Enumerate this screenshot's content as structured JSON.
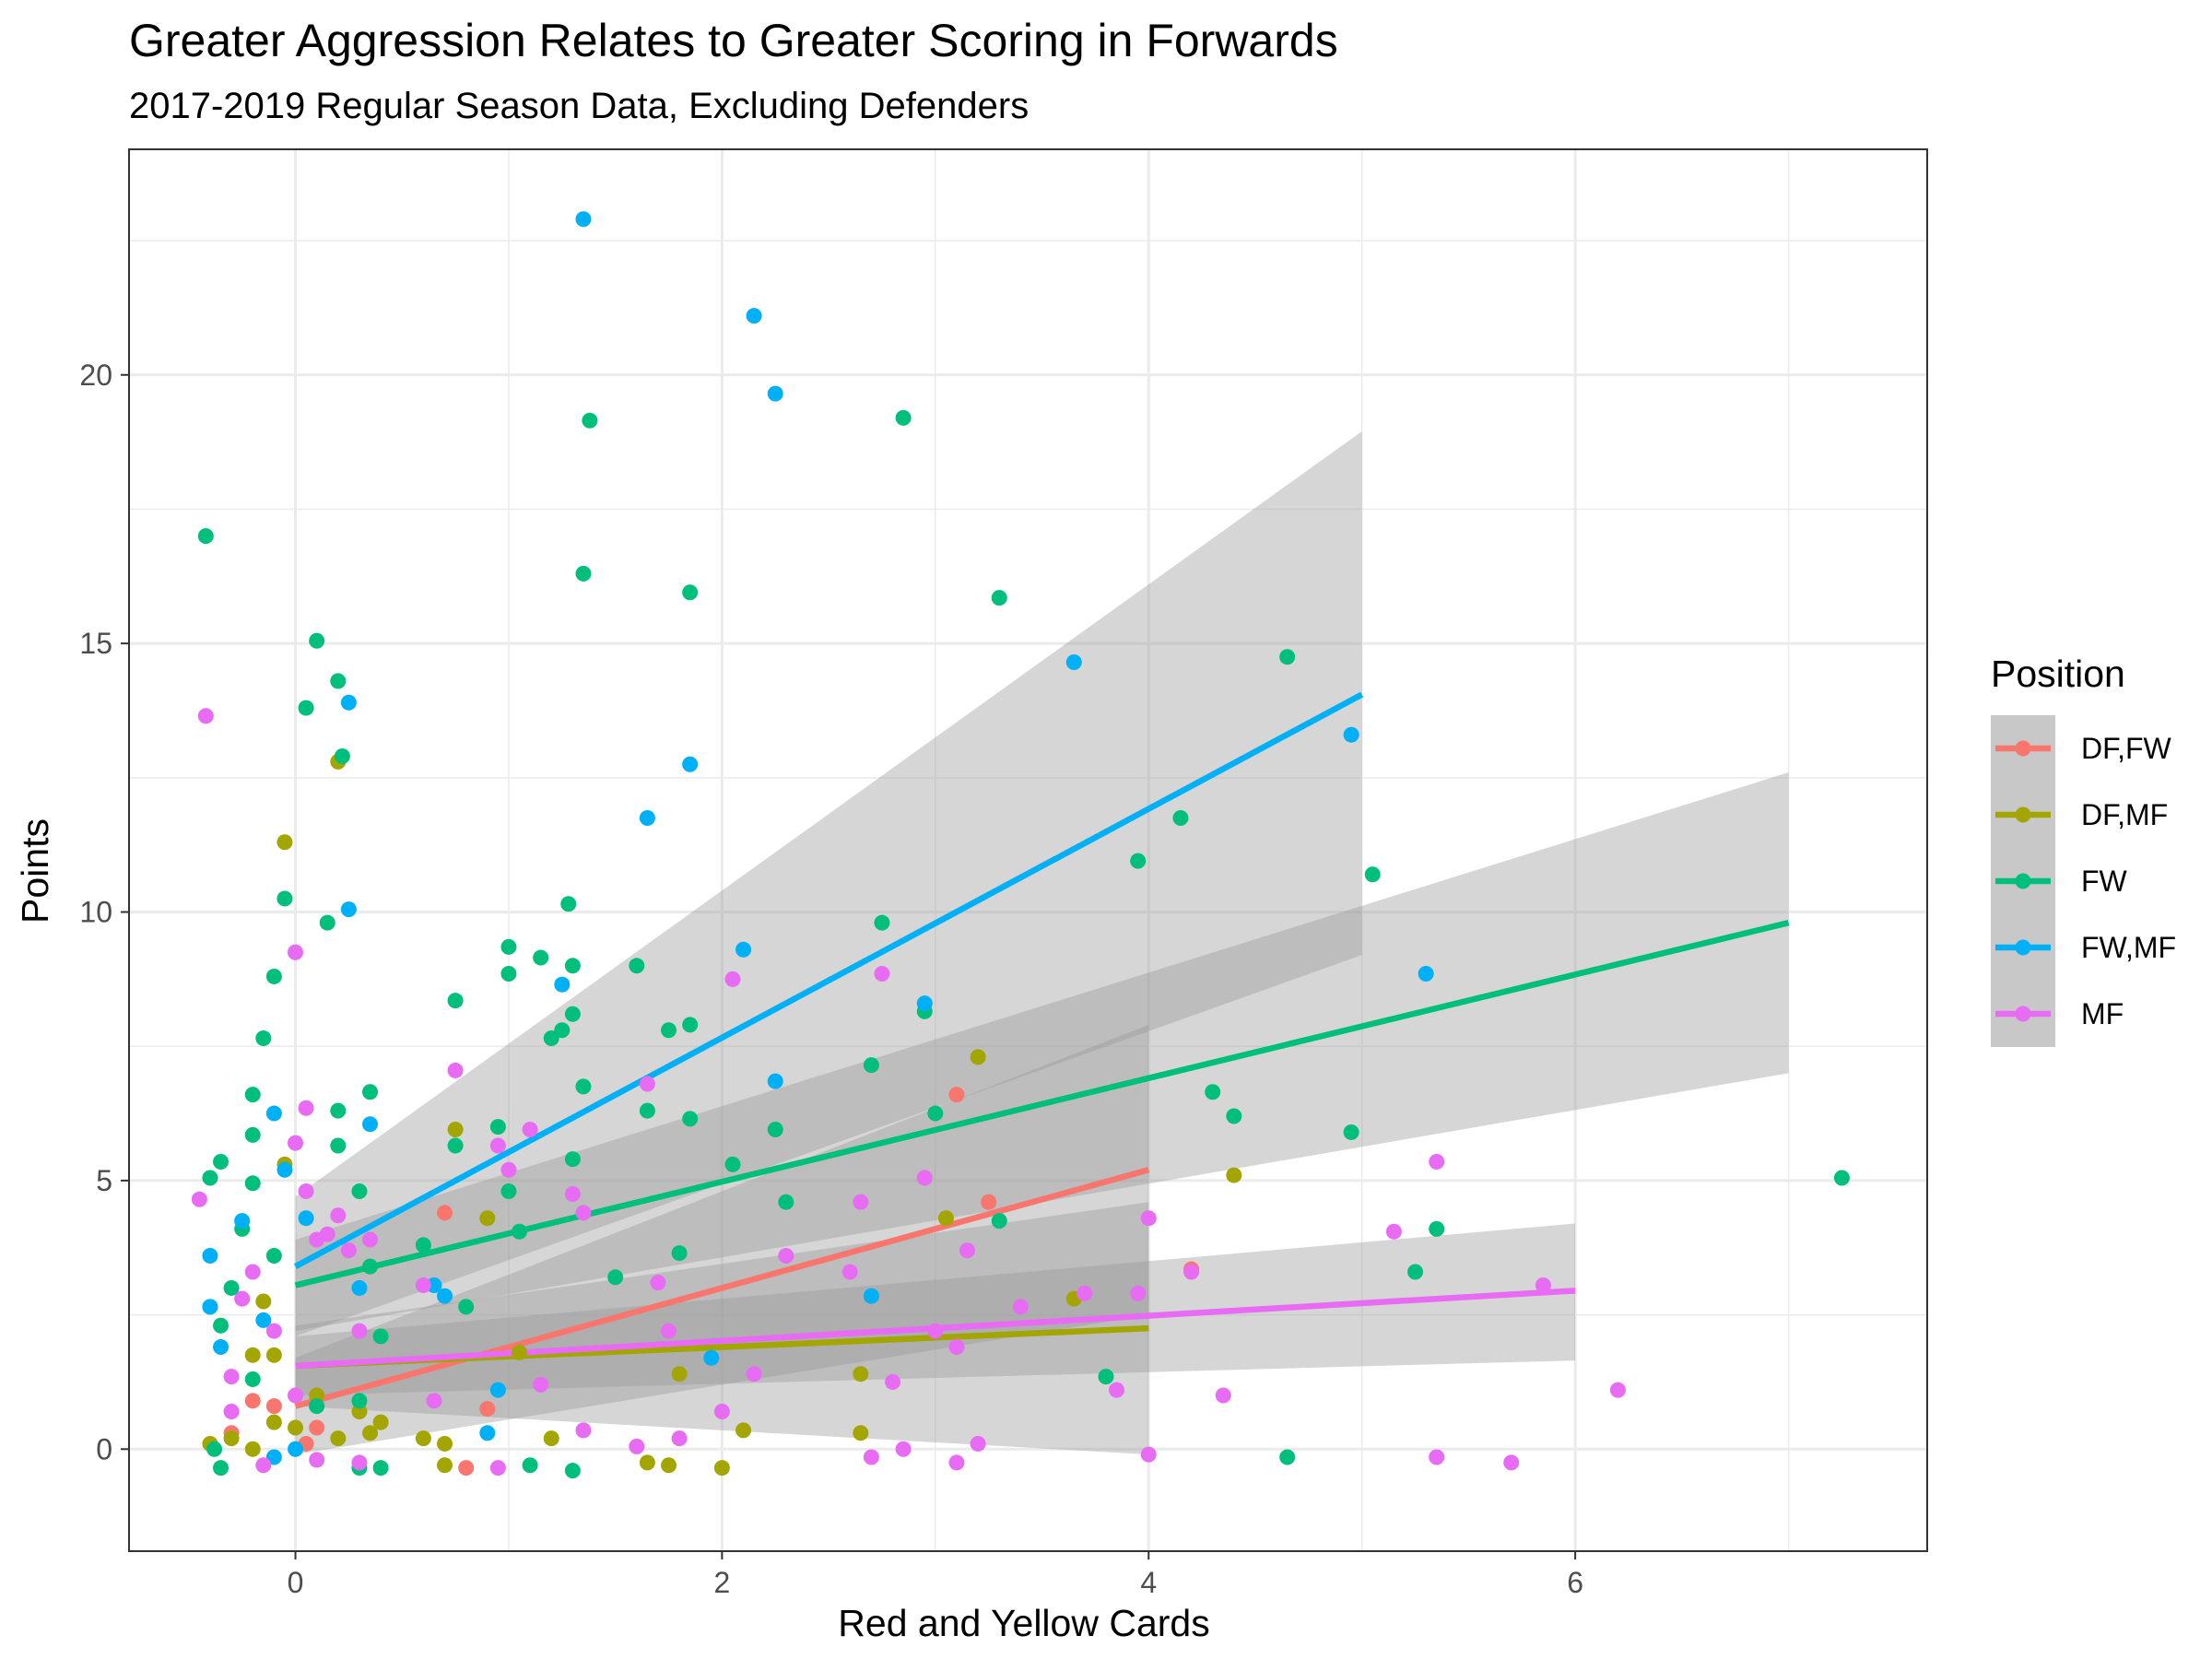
{
  "chart_data": {
    "type": "scatter",
    "title": "Greater Aggression Relates to Greater Scoring in Forwards",
    "subtitle": "2017-2019 Regular Season Data, Excluding Defenders",
    "xlabel": "Red and Yellow Cards",
    "ylabel": "Points",
    "xlim": [
      -0.78,
      7.65
    ],
    "ylim": [
      -1.9,
      24.2
    ],
    "x_ticks": [
      0,
      2,
      4,
      6
    ],
    "y_ticks": [
      0,
      5,
      10,
      15,
      20
    ],
    "x_tick_labels": [
      "0",
      "2",
      "4",
      "6"
    ],
    "y_tick_labels": [
      "0",
      "5",
      "10",
      "15",
      "20"
    ],
    "grid": true,
    "legend": {
      "title": "Position",
      "placement": "right"
    },
    "series": [
      {
        "name": "DF,FW",
        "color": "#F8766D",
        "points": [
          [
            -0.3,
            0.3
          ],
          [
            -0.2,
            0.9
          ],
          [
            -0.1,
            0.8
          ],
          [
            0.05,
            0.1
          ],
          [
            0.1,
            0.4
          ],
          [
            0.7,
            4.4
          ],
          [
            0.8,
            -0.35
          ],
          [
            0.9,
            0.75
          ],
          [
            3.1,
            6.6
          ],
          [
            3.25,
            4.6
          ],
          [
            4.2,
            3.35
          ]
        ],
        "fit": {
          "x": [
            0,
            4
          ],
          "y": [
            0.8,
            5.2
          ]
        },
        "band": {
          "x": [
            0,
            4
          ],
          "lower": [
            -0.1,
            2.5
          ],
          "upper": [
            1.7,
            7.9
          ]
        }
      },
      {
        "name": "DF,MF",
        "color": "#A3A500",
        "points": [
          [
            -0.4,
            0.1
          ],
          [
            -0.3,
            0.2
          ],
          [
            -0.2,
            1.75
          ],
          [
            -0.2,
            0.0
          ],
          [
            -0.15,
            2.75
          ],
          [
            -0.1,
            1.75
          ],
          [
            -0.1,
            0.5
          ],
          [
            -0.05,
            11.3
          ],
          [
            -0.05,
            5.3
          ],
          [
            0.0,
            0.4
          ],
          [
            0.1,
            1.0
          ],
          [
            0.2,
            12.8
          ],
          [
            0.2,
            0.2
          ],
          [
            0.3,
            0.7
          ],
          [
            0.35,
            0.3
          ],
          [
            0.4,
            0.5
          ],
          [
            0.6,
            0.2
          ],
          [
            0.7,
            -0.3
          ],
          [
            0.7,
            0.1
          ],
          [
            0.75,
            5.95
          ],
          [
            0.9,
            4.3
          ],
          [
            1.05,
            1.8
          ],
          [
            1.2,
            0.2
          ],
          [
            1.8,
            1.4
          ],
          [
            1.75,
            -0.3
          ],
          [
            1.65,
            -0.25
          ],
          [
            2.0,
            -0.35
          ],
          [
            2.1,
            0.35
          ],
          [
            2.65,
            1.4
          ],
          [
            2.65,
            0.3
          ],
          [
            3.05,
            4.3
          ],
          [
            3.2,
            7.3
          ],
          [
            3.65,
            2.8
          ],
          [
            4.4,
            5.1
          ]
        ],
        "fit": {
          "x": [
            0,
            4
          ],
          "y": [
            1.55,
            2.25
          ]
        },
        "band": {
          "x": [
            0,
            4
          ],
          "lower": [
            0.8,
            -0.1
          ],
          "upper": [
            2.3,
            4.6
          ]
        }
      },
      {
        "name": "FW",
        "color": "#00BF7D",
        "points": [
          [
            -0.42,
            17.0
          ],
          [
            -0.4,
            5.05
          ],
          [
            -0.35,
            5.35
          ],
          [
            -0.4,
            2.65
          ],
          [
            -0.35,
            2.3
          ],
          [
            -0.3,
            3.0
          ],
          [
            -0.25,
            4.1
          ],
          [
            -0.2,
            6.6
          ],
          [
            -0.2,
            5.85
          ],
          [
            -0.2,
            4.95
          ],
          [
            -0.15,
            7.65
          ],
          [
            -0.1,
            3.6
          ],
          [
            -0.1,
            8.8
          ],
          [
            -0.05,
            10.25
          ],
          [
            0.05,
            13.8
          ],
          [
            0.1,
            15.05
          ],
          [
            0.15,
            9.8
          ],
          [
            0.2,
            14.3
          ],
          [
            0.2,
            6.3
          ],
          [
            0.2,
            5.65
          ],
          [
            0.22,
            12.9
          ],
          [
            0.35,
            6.65
          ],
          [
            0.3,
            4.8
          ],
          [
            0.35,
            3.4
          ],
          [
            0.4,
            2.1
          ],
          [
            -0.38,
            0.0
          ],
          [
            -0.2,
            1.3
          ],
          [
            0.1,
            0.8
          ],
          [
            0.3,
            0.9
          ],
          [
            0.6,
            3.8
          ],
          [
            0.75,
            8.35
          ],
          [
            0.75,
            5.65
          ],
          [
            0.8,
            2.65
          ],
          [
            0.95,
            6.0
          ],
          [
            1.0,
            9.35
          ],
          [
            1.0,
            8.85
          ],
          [
            1.0,
            4.8
          ],
          [
            1.05,
            4.05
          ],
          [
            1.15,
            9.15
          ],
          [
            1.2,
            7.65
          ],
          [
            1.25,
            7.8
          ],
          [
            1.28,
            10.15
          ],
          [
            1.3,
            9.0
          ],
          [
            1.3,
            8.1
          ],
          [
            1.35,
            16.3
          ],
          [
            1.35,
            6.75
          ],
          [
            1.3,
            5.4
          ],
          [
            1.38,
            19.15
          ],
          [
            1.5,
            3.2
          ],
          [
            1.6,
            9.0
          ],
          [
            1.65,
            6.3
          ],
          [
            1.75,
            7.8
          ],
          [
            1.85,
            7.9
          ],
          [
            1.85,
            15.95
          ],
          [
            1.85,
            6.15
          ],
          [
            1.8,
            3.65
          ],
          [
            2.05,
            5.3
          ],
          [
            2.25,
            5.95
          ],
          [
            2.3,
            4.6
          ],
          [
            2.7,
            7.15
          ],
          [
            2.75,
            9.8
          ],
          [
            2.85,
            19.2
          ],
          [
            2.95,
            8.15
          ],
          [
            3.0,
            6.25
          ],
          [
            3.3,
            15.85
          ],
          [
            3.3,
            4.25
          ],
          [
            3.95,
            10.95
          ],
          [
            4.15,
            11.75
          ],
          [
            4.3,
            6.65
          ],
          [
            4.4,
            6.2
          ],
          [
            4.65,
            14.75
          ],
          [
            4.95,
            5.9
          ],
          [
            5.05,
            10.7
          ],
          [
            5.25,
            3.3
          ],
          [
            5.35,
            4.1
          ],
          [
            7.25,
            5.05
          ],
          [
            3.8,
            1.35
          ],
          [
            4.65,
            -0.15
          ],
          [
            1.1,
            -0.3
          ],
          [
            1.3,
            -0.4
          ],
          [
            0.3,
            -0.35
          ],
          [
            0.4,
            -0.35
          ],
          [
            -0.35,
            -0.35
          ]
        ],
        "fit": {
          "x": [
            0,
            7
          ],
          "y": [
            3.05,
            9.8
          ]
        },
        "band": {
          "x": [
            0,
            7
          ],
          "lower": [
            2.2,
            7.0
          ],
          "upper": [
            3.9,
            12.6
          ]
        }
      },
      {
        "name": "FW,MF",
        "color": "#00B0F6",
        "points": [
          [
            -0.4,
            2.65
          ],
          [
            -0.4,
            3.6
          ],
          [
            -0.35,
            1.9
          ],
          [
            -0.25,
            4.25
          ],
          [
            -0.15,
            2.4
          ],
          [
            -0.1,
            6.25
          ],
          [
            -0.05,
            5.2
          ],
          [
            0.05,
            4.3
          ],
          [
            0.25,
            13.9
          ],
          [
            0.25,
            10.05
          ],
          [
            0.35,
            6.05
          ],
          [
            0.3,
            3.0
          ],
          [
            0.65,
            3.05
          ],
          [
            0.7,
            2.85
          ],
          [
            1.25,
            8.65
          ],
          [
            1.35,
            22.9
          ],
          [
            1.65,
            11.75
          ],
          [
            1.85,
            12.75
          ],
          [
            2.1,
            9.3
          ],
          [
            2.15,
            21.1
          ],
          [
            2.25,
            19.65
          ],
          [
            2.25,
            6.85
          ],
          [
            2.95,
            8.3
          ],
          [
            3.65,
            14.65
          ],
          [
            4.95,
            13.3
          ],
          [
            5.3,
            8.85
          ],
          [
            2.7,
            2.85
          ],
          [
            1.95,
            1.7
          ],
          [
            0.95,
            1.1
          ],
          [
            0.9,
            0.3
          ],
          [
            -0.1,
            -0.15
          ],
          [
            0.0,
            0.0
          ]
        ],
        "fit": {
          "x": [
            0,
            5
          ],
          "y": [
            3.4,
            14.05
          ]
        },
        "band": {
          "x": [
            0,
            5
          ],
          "lower": [
            2.1,
            9.2
          ],
          "upper": [
            4.7,
            18.95
          ]
        }
      },
      {
        "name": "MF",
        "color": "#E76BF3",
        "points": [
          [
            -0.42,
            13.65
          ],
          [
            -0.45,
            4.65
          ],
          [
            -0.3,
            1.35
          ],
          [
            -0.25,
            2.8
          ],
          [
            -0.2,
            3.3
          ],
          [
            -0.1,
            2.2
          ],
          [
            0.0,
            9.25
          ],
          [
            0.0,
            5.7
          ],
          [
            0.05,
            6.35
          ],
          [
            0.05,
            4.8
          ],
          [
            0.1,
            3.9
          ],
          [
            0.15,
            4.0
          ],
          [
            0.2,
            4.35
          ],
          [
            0.25,
            3.7
          ],
          [
            0.3,
            2.2
          ],
          [
            0.35,
            3.9
          ],
          [
            0.6,
            3.05
          ],
          [
            0.65,
            0.9
          ],
          [
            0.75,
            7.05
          ],
          [
            0.95,
            5.65
          ],
          [
            1.0,
            5.2
          ],
          [
            1.1,
            5.95
          ],
          [
            1.15,
            1.2
          ],
          [
            1.3,
            4.75
          ],
          [
            1.35,
            4.4
          ],
          [
            1.65,
            6.8
          ],
          [
            1.7,
            3.1
          ],
          [
            1.75,
            2.2
          ],
          [
            2.05,
            8.75
          ],
          [
            2.0,
            0.7
          ],
          [
            2.15,
            1.4
          ],
          [
            2.3,
            3.6
          ],
          [
            2.6,
            3.3
          ],
          [
            2.65,
            4.6
          ],
          [
            2.75,
            8.85
          ],
          [
            2.7,
            -0.15
          ],
          [
            2.8,
            1.25
          ],
          [
            2.95,
            5.05
          ],
          [
            3.0,
            2.2
          ],
          [
            3.1,
            1.9
          ],
          [
            3.15,
            3.7
          ],
          [
            3.4,
            2.65
          ],
          [
            3.7,
            2.9
          ],
          [
            3.85,
            1.1
          ],
          [
            3.95,
            2.9
          ],
          [
            4.0,
            4.3
          ],
          [
            4.0,
            -0.1
          ],
          [
            4.2,
            3.3
          ],
          [
            4.35,
            1.0
          ],
          [
            5.15,
            4.05
          ],
          [
            5.35,
            5.35
          ],
          [
            5.35,
            -0.15
          ],
          [
            5.7,
            -0.25
          ],
          [
            5.85,
            3.05
          ],
          [
            6.2,
            1.1
          ],
          [
            3.1,
            -0.25
          ],
          [
            3.2,
            0.1
          ],
          [
            2.85,
            0.0
          ],
          [
            1.6,
            0.05
          ],
          [
            1.8,
            0.2
          ],
          [
            1.35,
            0.35
          ],
          [
            0.95,
            -0.35
          ],
          [
            0.3,
            -0.25
          ],
          [
            0.1,
            -0.2
          ],
          [
            -0.15,
            -0.3
          ],
          [
            -0.3,
            0.7
          ],
          [
            0.0,
            1.0
          ]
        ],
        "fit": {
          "x": [
            0,
            6
          ],
          "y": [
            1.55,
            2.95
          ]
        },
        "band": {
          "x": [
            0,
            6
          ],
          "lower": [
            1.0,
            1.65
          ],
          "upper": [
            2.1,
            4.2
          ]
        }
      }
    ]
  }
}
